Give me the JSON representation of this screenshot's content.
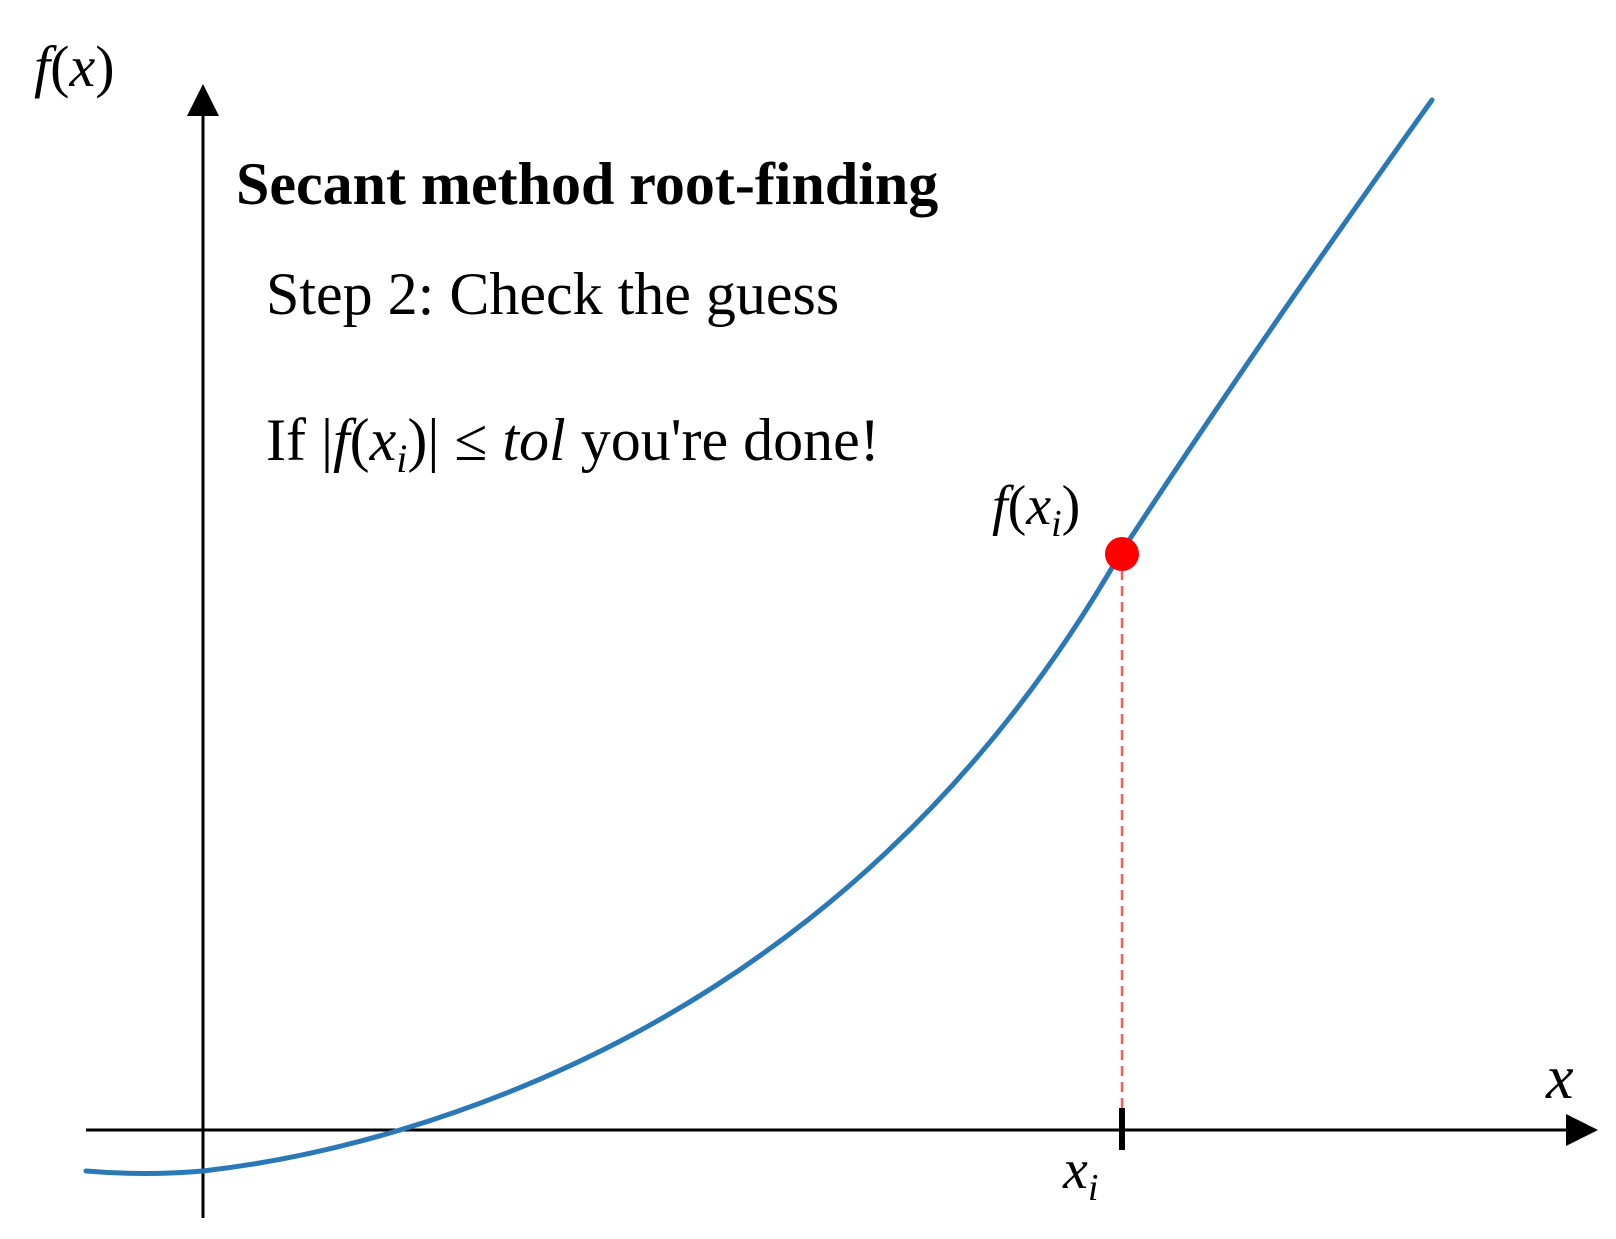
{
  "title": "Secant method root-finding",
  "step": "Step 2: Check the guess",
  "condition": {
    "prefix": "If ",
    "abs_open": "|",
    "f": "f",
    "paren_open": "(",
    "x": "x",
    "sub": "i",
    "paren_close": ")",
    "abs_close": "|",
    "leq": " ≤ ",
    "tol": "tol",
    "suffix": " you're done!"
  },
  "axis_labels": {
    "y": {
      "f": "f",
      "open": "(",
      "x": "x",
      "close": ")"
    },
    "x": "x"
  },
  "point_label": {
    "f": "f",
    "open": "(",
    "x": "x",
    "sub": "i",
    "close": ")"
  },
  "tick_label": {
    "x": "x",
    "sub": "i"
  },
  "colors": {
    "curve": "#2a78b5",
    "point": "#ff0000",
    "dashed": "#ff5a5a",
    "axis": "#000000"
  }
}
